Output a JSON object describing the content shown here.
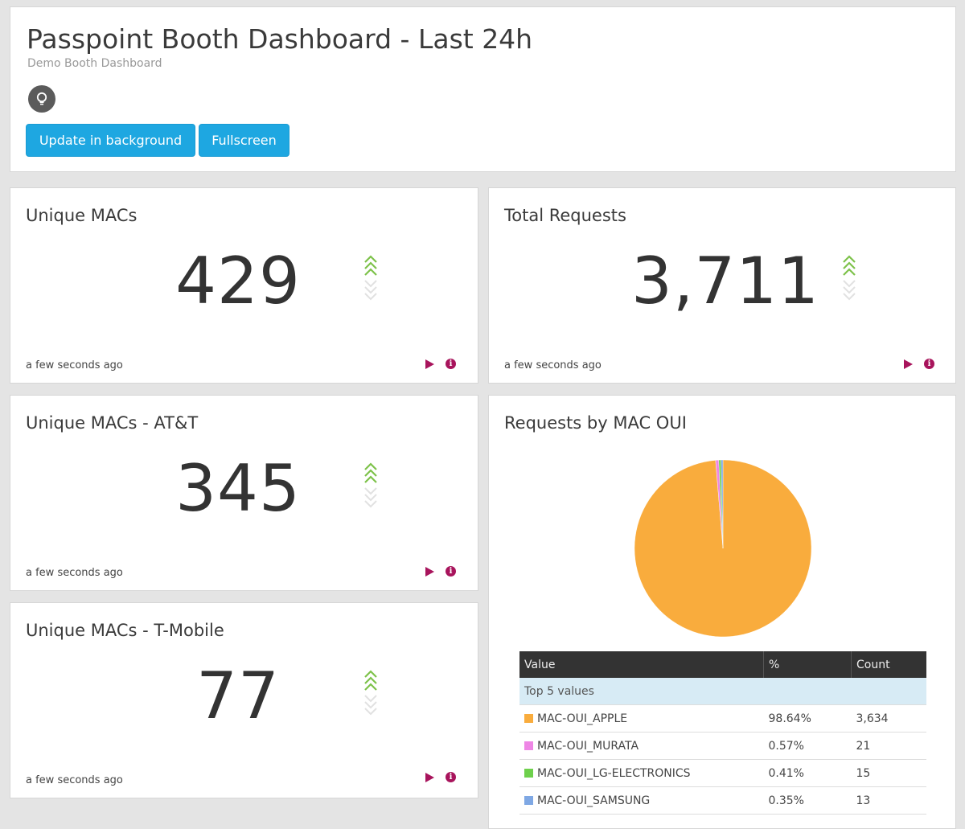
{
  "header": {
    "title": "Passpoint Booth Dashboard - Last 24h",
    "subtitle": "Demo Booth Dashboard",
    "buttons": {
      "update": "Update in background",
      "fullscreen": "Fullscreen"
    }
  },
  "widgets": {
    "unique_macs": {
      "title": "Unique MACs",
      "value": "429",
      "timestamp": "a few seconds ago"
    },
    "total_requests": {
      "title": "Total Requests",
      "value": "3,711",
      "timestamp": "a few seconds ago"
    },
    "unique_macs_att": {
      "title": "Unique MACs - AT&T",
      "value": "345",
      "timestamp": "a few seconds ago"
    },
    "unique_macs_tmobile": {
      "title": "Unique MACs - T-Mobile",
      "value": "77",
      "timestamp": "a few seconds ago"
    }
  },
  "pie": {
    "title": "Requests by MAC OUI",
    "columns": [
      "Value",
      "%",
      "Count"
    ],
    "group_label": "Top 5 values",
    "rows": [
      {
        "value": "MAC-OUI_APPLE",
        "pct": "98.64%",
        "count": "3,634",
        "color": "#f9ac3d"
      },
      {
        "value": "MAC-OUI_MURATA",
        "pct": "0.57%",
        "count": "21",
        "color": "#ee86e5"
      },
      {
        "value": "MAC-OUI_LG-ELECTRONICS",
        "pct": "0.41%",
        "count": "15",
        "color": "#6ed04c"
      },
      {
        "value": "MAC-OUI_SAMSUNG",
        "pct": "0.35%",
        "count": "13",
        "color": "#7fa8e4"
      }
    ]
  },
  "colors": {
    "accent": "#1ea7e1",
    "action": "#a8145c",
    "trend": "#7dc24a"
  }
}
